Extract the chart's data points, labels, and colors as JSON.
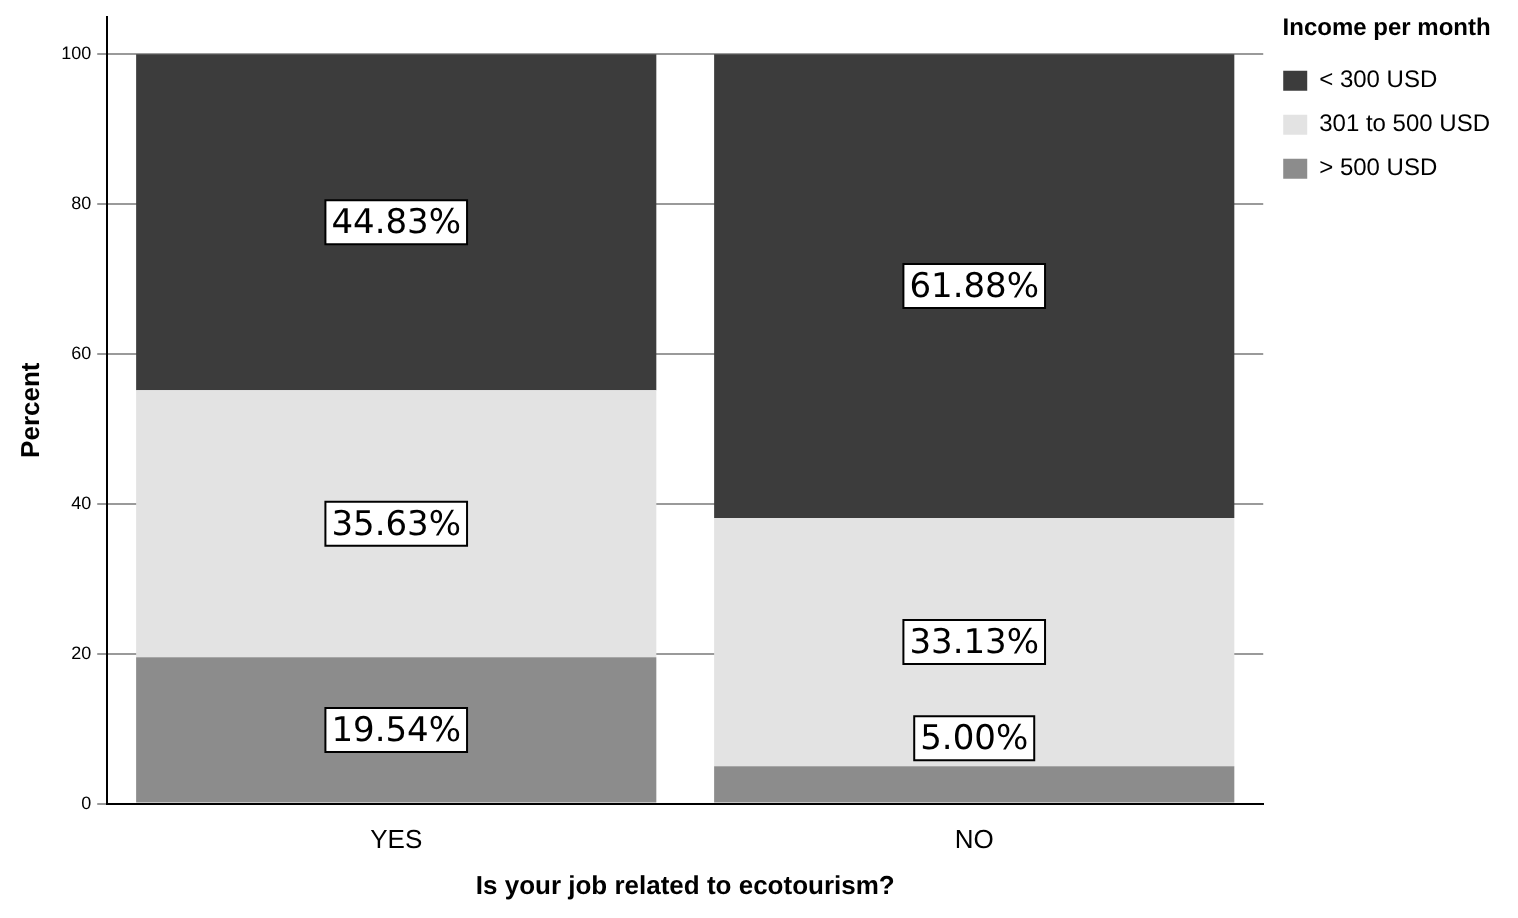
{
  "chart_data": {
    "type": "bar",
    "stacked": true,
    "xlabel": "Is your job related to ecotourism?",
    "ylabel": "Percent",
    "legend_title": "Income per month",
    "categories": [
      "YES",
      "NO"
    ],
    "series": [
      {
        "name": "> 500 USD",
        "color": "#8c8c8c",
        "values": [
          19.54,
          5.0
        ],
        "value_labels": [
          "19.54%",
          "5.00%"
        ]
      },
      {
        "name": "301 to 500 USD",
        "color": "#e3e3e3",
        "values": [
          35.63,
          33.13
        ],
        "value_labels": [
          "35.63%",
          "33.13%"
        ]
      },
      {
        "name": "< 300 USD",
        "color": "#3c3c3c",
        "values": [
          44.83,
          61.88
        ],
        "value_labels": [
          "44.83%",
          "61.88%"
        ]
      }
    ],
    "ylim": [
      0,
      105
    ],
    "yticks": [
      0,
      20,
      40,
      60,
      80,
      100
    ],
    "grid": "y",
    "legend": "top right"
  }
}
